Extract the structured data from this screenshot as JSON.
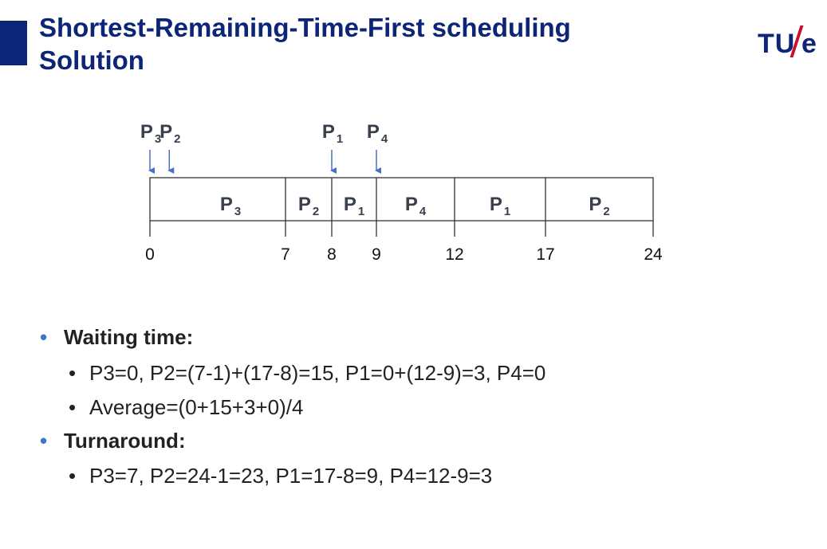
{
  "slide": {
    "title_line1": "Shortest-Remaining-Time-First scheduling",
    "title_line2": "Solution",
    "logo": {
      "letters": "TU",
      "suffix": "e",
      "slash_color": "#c8102e"
    },
    "colors": {
      "title": "#0c2577",
      "accent": "#0c2577",
      "arrow": "#4472c4",
      "bullet": "#4472c4"
    }
  },
  "diagram": {
    "arrivals": [
      {
        "label": "P",
        "sub": "3",
        "time": 0
      },
      {
        "label": "P",
        "sub": "2",
        "time": 1
      },
      {
        "label": "P",
        "sub": "1",
        "time": 8
      },
      {
        "label": "P",
        "sub": "4",
        "time": 9
      }
    ],
    "segments": [
      {
        "label": "P",
        "sub": "3",
        "start": 0,
        "end": 7
      },
      {
        "label": "P",
        "sub": "2",
        "start": 7,
        "end": 8
      },
      {
        "label": "P",
        "sub": "1",
        "start": 8,
        "end": 9
      },
      {
        "label": "P",
        "sub": "4",
        "start": 9,
        "end": 12
      },
      {
        "label": "P",
        "sub": "1",
        "start": 12,
        "end": 17
      },
      {
        "label": "P",
        "sub": "2",
        "start": 17,
        "end": 24
      }
    ],
    "ticks": [
      "0",
      "7",
      "8",
      "9",
      "12",
      "17",
      "24"
    ]
  },
  "bullets": {
    "waiting_heading": "Waiting time:",
    "waiting_items": [
      "P3=0, P2=(7-1)+(17-8)=15, P1=0+(12-9)=3, P4=0",
      "Average=(0+15+3+0)/4"
    ],
    "turnaround_heading": "Turnaround:",
    "turnaround_items": [
      "P3=7, P2=24-1=23, P1=17-8=9, P4=12-9=3"
    ],
    "dot_char": "•"
  }
}
